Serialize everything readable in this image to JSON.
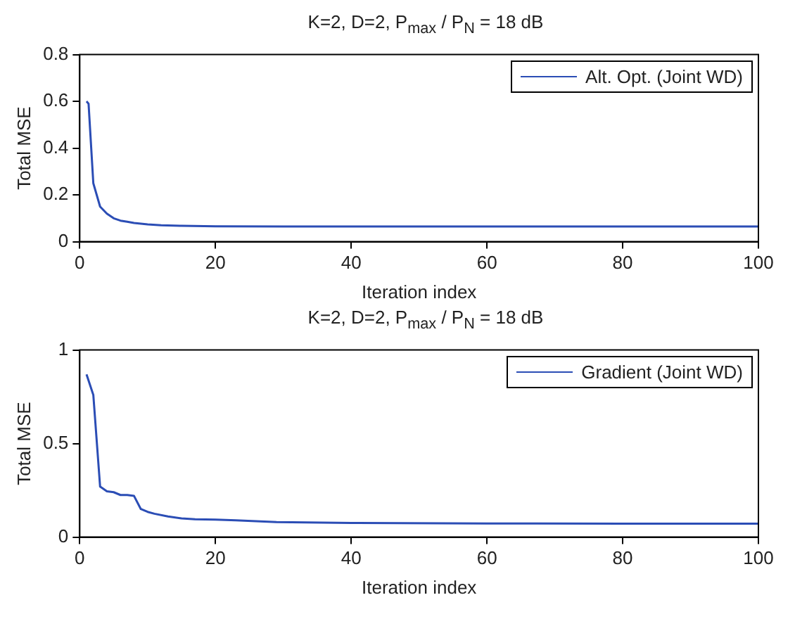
{
  "chart_data": [
    {
      "type": "line",
      "title": "K=2, D=2, P$_{max}$ / P$_{N}$ = 18 dB",
      "xlabel": "Iteration index",
      "ylabel": "Total MSE",
      "xlim": [
        0,
        100
      ],
      "xticks": [
        0,
        20,
        40,
        60,
        80,
        100
      ],
      "ylim": [
        0,
        0.8
      ],
      "yticks": [
        0,
        0.2,
        0.4,
        0.6,
        0.8
      ],
      "grid": false,
      "legend": "top right",
      "series": [
        {
          "name": "Alt. Opt. (Joint WD)",
          "color": "#2b4db5",
          "x": [
            1,
            1.3,
            2,
            3,
            4,
            5,
            6,
            7,
            8,
            10,
            12,
            15,
            20,
            30,
            50,
            100
          ],
          "values": [
            0.6,
            0.59,
            0.25,
            0.15,
            0.12,
            0.1,
            0.09,
            0.085,
            0.08,
            0.074,
            0.07,
            0.068,
            0.066,
            0.065,
            0.065,
            0.065
          ]
        }
      ]
    },
    {
      "type": "line",
      "title": "K=2, D=2, P$_{max}$ / P$_{N}$ = 18 dB",
      "xlabel": "Iteration index",
      "ylabel": "Total MSE",
      "xlim": [
        0,
        100
      ],
      "xticks": [
        0,
        20,
        40,
        60,
        80,
        100
      ],
      "ylim": [
        0,
        1
      ],
      "yticks": [
        0,
        0.5,
        1
      ],
      "grid": false,
      "legend": "top right",
      "series": [
        {
          "name": "Gradient (Joint WD)",
          "color": "#2b4db5",
          "x": [
            1,
            2,
            3,
            4,
            5,
            6,
            7,
            8,
            9,
            10,
            11,
            13,
            15,
            17,
            20,
            23,
            26,
            29,
            40,
            60,
            80,
            100
          ],
          "values": [
            0.87,
            0.76,
            0.27,
            0.245,
            0.24,
            0.225,
            0.225,
            0.22,
            0.15,
            0.135,
            0.125,
            0.11,
            0.1,
            0.095,
            0.093,
            0.09,
            0.085,
            0.08,
            0.076,
            0.073,
            0.072,
            0.072
          ]
        }
      ]
    }
  ]
}
